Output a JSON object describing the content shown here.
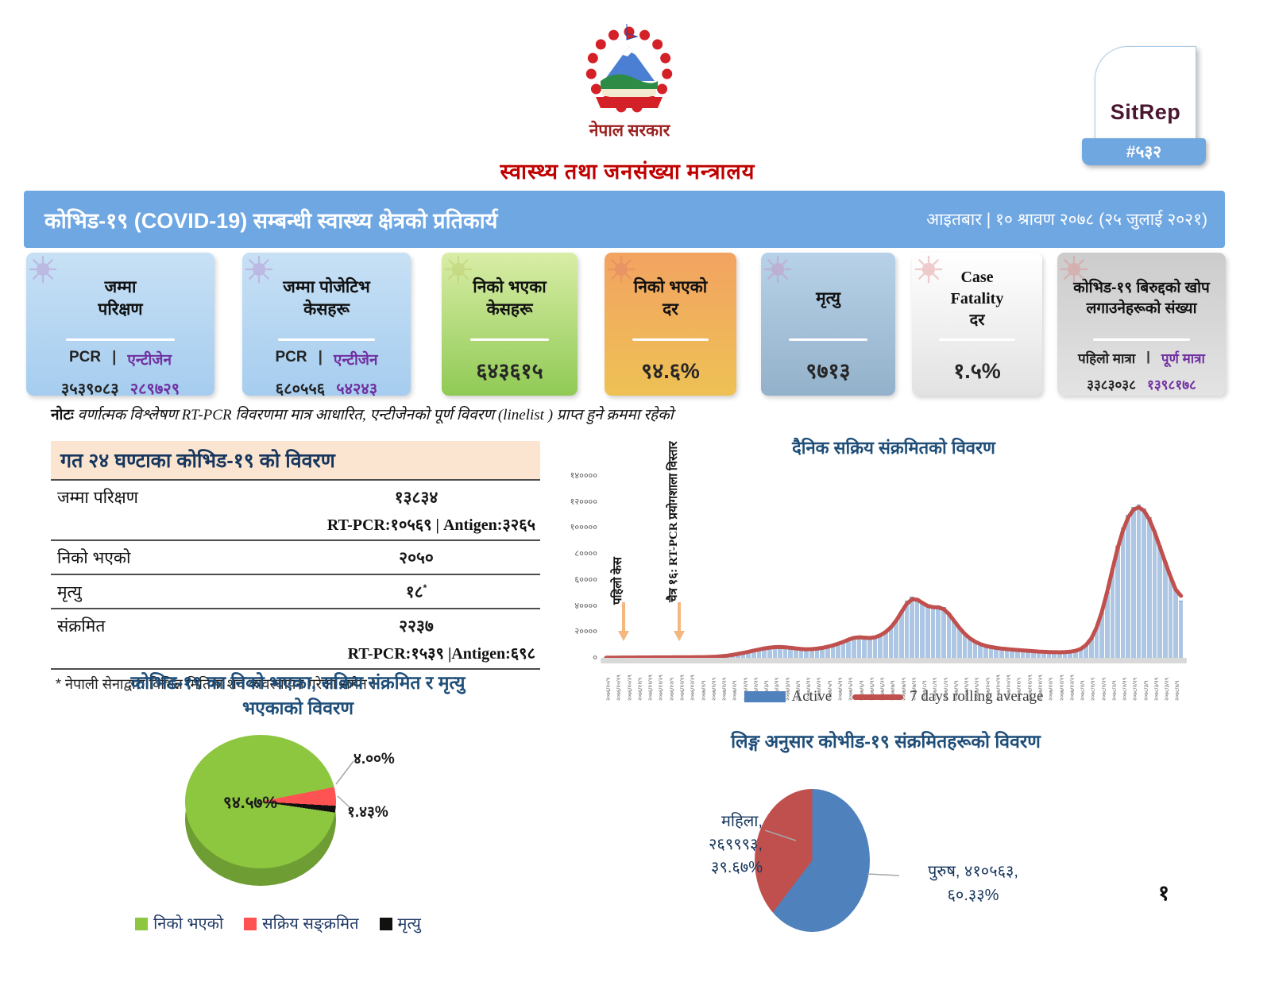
{
  "header": {
    "gov_label": "नेपाल सरकार",
    "ministry": "स्वास्थ्य तथा जनसंख्या मन्त्रालय",
    "sitrep_label": "SitRep",
    "sitrep_number": "#५३२"
  },
  "banner": {
    "title": "कोभिड-१९ (COVID-19) सम्बन्धी स्वास्थ्य क्षेत्रको प्रतिकार्य",
    "date": "आइतबार  |  १० श्रावण २०७८ (२५ जुलाई २०२१)"
  },
  "stat_cards": [
    {
      "title_lines": [
        "जम्मा",
        "परिक्षण"
      ],
      "left_label": "PCR",
      "sep": "|",
      "right_label": "एन्टीजेन",
      "left_value": "३५३९०८३",
      "right_value": "२८९७२९",
      "bg": [
        "#c7e0f5",
        "#a6cdef"
      ],
      "icon_color": "#b48ece"
    },
    {
      "title_lines": [
        "जम्मा पोजेटिभ",
        "केसहरू"
      ],
      "left_label": "PCR",
      "sep": "|",
      "right_label": "एन्टीजेन",
      "left_value": "६८०५५६",
      "right_value": "५४२४३",
      "bg": [
        "#c7e0f5",
        "#a6cdef"
      ],
      "icon_color": "#b48ece"
    },
    {
      "title_lines": [
        "निको भएका",
        "केसहरू"
      ],
      "value": "६४३६१५",
      "bg": [
        "#d9eda6",
        "#90ca55"
      ],
      "icon_color": "#bcc96a"
    },
    {
      "title_lines": [
        "निको भएको",
        "दर"
      ],
      "value": "९४.६%",
      "bg": [
        "#f2a361",
        "#eec155"
      ],
      "icon_color": "#df7f6a"
    },
    {
      "title_lines": [
        "मृत्यु"
      ],
      "value": "९७१३",
      "bg": [
        "#b7d2e8",
        "#93b1ca"
      ],
      "icon_color": "#c990c0"
    },
    {
      "title_lines": [
        "Case",
        "Fatality",
        "दर"
      ],
      "value": "१.५%",
      "bg": [
        "#ffffff",
        "#e2e2e2"
      ],
      "icon_color": "#e09090"
    },
    {
      "title_lines": [
        "कोभिड-१९ बिरुद्दको खोप",
        "लगाउनेहरूको संख्या"
      ],
      "left_label": "पहिलो मात्रा",
      "sep": "|",
      "right_label": "पूर्ण मात्रा",
      "left_value": "३३८३०३८",
      "right_value": "१३९८१७८",
      "bg": [
        "#cccccc",
        "#e3e3e3"
      ],
      "icon_color": "#dd8d8d"
    }
  ],
  "note": {
    "label": "नोटः",
    "text": "वर्णात्मक विश्लेषण RT-PCR विवरणमा मात्र आधारित, एन्टीजेनको पूर्ण विवरण (linelist ) प्राप्त हुने क्रममा रहेको"
  },
  "daily_table": {
    "title": "गत २४ घण्टाका कोभिड-१९ को विवरण",
    "rows": [
      {
        "label": "जम्मा परिक्षण",
        "value": "१३८३४",
        "sub": "RT-PCR:१०५६९ | Antigen:३२६५"
      },
      {
        "label": "निको भएको",
        "value": "२०५०"
      },
      {
        "label": "मृत्यु",
        "value": "१८",
        "value_sup": "*"
      },
      {
        "label": "संक्रमित",
        "value": "२२३७",
        "sub": "RT-PCR:१५३९  |Antigen:६९८"
      }
    ],
    "footnote": "नेपाली सेनाद्वारा विभिन्न मितिमा शव व्यवस्थापन गरेका समेत  ।",
    "footnote_bullet": "*"
  },
  "colors": {
    "banner_blue": "#6FA7E3",
    "heading_navy": "#1F4E79",
    "ministry_red": "#C00000",
    "antigen_purple": "#7030A0",
    "bar_fill": "#ADC6E3",
    "rolling_line_red": "#C0504D"
  },
  "chart_data": [
    {
      "type": "bar",
      "title": "दैनिक सक्रिय संक्रमितको विवरण",
      "ylim": [
        0,
        140000
      ],
      "y_ticks": [
        "०",
        "२००००",
        "४००००",
        "६००००",
        "८००००",
        "१०००००",
        "१२००००",
        "१४००००"
      ],
      "legend": [
        "Active",
        "7 days rolling average"
      ],
      "annotations": [
        {
          "text": "पहिलो केस"
        },
        {
          "text": "चैत्र १६: RT-PCR प्रयोगशाला विस्तार"
        }
      ],
      "series": [
        {
          "name": "Active",
          "type": "bar",
          "values": [
            150,
            180,
            200,
            220,
            240,
            260,
            280,
            300,
            320,
            340,
            350,
            360,
            380,
            400,
            420,
            450,
            480,
            520,
            560,
            600,
            700,
            900,
            1200,
            1700,
            2300,
            3000,
            3800,
            4700,
            5600,
            6500,
            7300,
            7900,
            8300,
            8400,
            8200,
            7700,
            7100,
            6700,
            6500,
            6600,
            7000,
            7600,
            8400,
            9500,
            10800,
            12300,
            14000,
            15800,
            16200,
            15300,
            14800,
            15500,
            17000,
            19500,
            23000,
            28000,
            35000,
            43000,
            46500,
            45000,
            42000,
            39000,
            38000,
            39500,
            38500,
            34000,
            28000,
            22500,
            18000,
            14500,
            12000,
            10200,
            9000,
            8200,
            7600,
            7100,
            6700,
            6300,
            6000,
            5700,
            5400,
            5100,
            4800,
            4600,
            4400,
            4300,
            4200,
            4300,
            4600,
            5200,
            6500,
            9000,
            14000,
            22000,
            34000,
            50000,
            68000,
            85000,
            99000,
            109000,
            115000,
            117000,
            114000,
            107000,
            97000,
            85000,
            73000,
            62000,
            52000,
            43000
          ]
        },
        {
          "name": "7 days rolling average",
          "type": "line",
          "derived_from": "Active"
        }
      ],
      "x_labels": [
        "२०७६/१०/९",
        "२०७६/१०/१९",
        "२०७६/१०/२९",
        "२०७६/११/९",
        "२०७६/११/१९",
        "२०७६/११/२९",
        "२०७६/१२/९",
        "२०७६/१२/१९",
        "२०७६/१२/२९",
        "२०७७/१/९",
        "२०७७/१/१९",
        "२०७७/१/२९",
        "२०७७/२/९",
        "२०७७/२/१९",
        "२०७७/२/२९",
        "२०७७/३/९",
        "२०७७/३/१९",
        "२०७७/३/२९",
        "२०७७/४/९",
        "२०७७/४/१९",
        "२०७७/४/२९",
        "२०७७/५/९",
        "२०७७/५/१९",
        "२०७७/५/२९",
        "२०७७/६/९",
        "२०७७/६/१९",
        "२०७७/६/२९",
        "२०७७/७/९",
        "२०७७/७/१९",
        "२०७७/७/२९",
        "२०७७/८/९",
        "२०७७/८/१९",
        "२०७७/८/२९",
        "२०७७/९/९",
        "२०७७/९/१९",
        "२०७७/९/२९",
        "२०७७/१०/९",
        "२०७७/१०/१९",
        "२०७७/१०/२९",
        "२०७७/११/९",
        "२०७७/११/१९",
        "२०७७/११/२९",
        "२०७७/१२/९",
        "२०७७/१२/१९",
        "२०७७/१२/२९",
        "२०७८/१/९",
        "२०७८/१/१९",
        "२०७८/१/२९",
        "२०७८/२/९",
        "२०७८/२/१९",
        "२०७८/२/२९",
        "२०७८/३/९",
        "२०७८/३/१९",
        "२०७८/३/२९",
        "२०७८/४/९"
      ]
    },
    {
      "type": "pie",
      "title_lines": [
        "कोभिड-१९ का निको भएका, सक्रिय संक्रमित र मृत्यु",
        "भएकाको विवरण"
      ],
      "slices": [
        {
          "label": "निको भएको",
          "value": 94.57,
          "display": "९४.५७%",
          "color": "#8dc63f"
        },
        {
          "label": "सक्रिय सङ्क्रमित",
          "value": 4.0,
          "display": "४.००%",
          "color": "#ff5252"
        },
        {
          "label": "मृत्यु",
          "value": 1.43,
          "display": "१.४३%",
          "color": "#111111"
        }
      ]
    },
    {
      "type": "pie",
      "title": "लिङ्ग अनुसार कोभीड-१९ संक्रमितहरूको विवरण",
      "slices": [
        {
          "label": "पुरुष",
          "count": "४१०५६३",
          "value": 60.33,
          "display_lines": [
            "पुरुष, ४१०५६३,",
            "६०.३३%"
          ],
          "color": "#4f81bd"
        },
        {
          "label": "महिला",
          "count": "२६९९९३",
          "value": 39.67,
          "display_lines": [
            "महिला,",
            "२६९९९३,",
            "३९.६७%"
          ],
          "color": "#c0504d"
        }
      ]
    }
  ],
  "page": {
    "page_number": "१"
  }
}
